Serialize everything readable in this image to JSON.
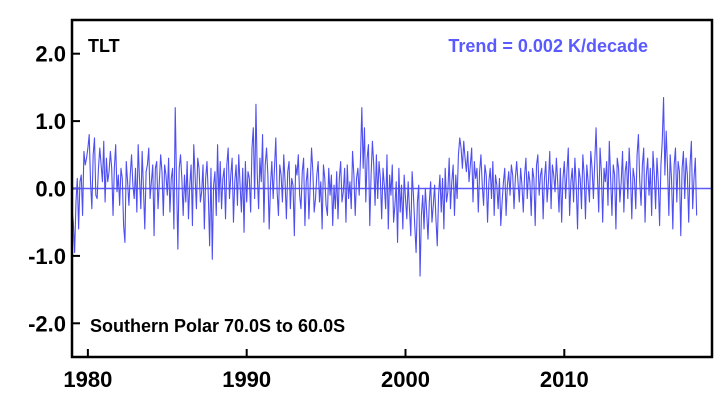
{
  "chart_data": {
    "type": "line",
    "dataset_label": "TLT",
    "trend_text": "Trend =  0.002 K/decade",
    "region_text": "Southern Polar  70.0S to  60.0S",
    "xlim": [
      1979.0,
      2019.3
    ],
    "ylim": [
      -2.5,
      2.5
    ],
    "x_ticks": [
      {
        "value": 1980,
        "label": "1980"
      },
      {
        "value": 1990,
        "label": "1990"
      },
      {
        "value": 2000,
        "label": "2000"
      },
      {
        "value": 2010,
        "label": "2010"
      }
    ],
    "y_ticks": [
      {
        "value": 2.0,
        "label": "2.0"
      },
      {
        "value": 1.0,
        "label": "1.0"
      },
      {
        "value": 0.0,
        "label": "0.0"
      },
      {
        "value": -1.0,
        "label": "-1.0"
      },
      {
        "value": -2.0,
        "label": "-2.0"
      }
    ],
    "series_color": "#4f4ff0",
    "trend_color": "#5a5aff",
    "zero_line": true,
    "grid": false,
    "start_year": 1979.0,
    "step": 0.0833333,
    "series": [
      {
        "values": [
          -0.3,
          -0.5,
          -0.95,
          -0.2,
          0.15,
          -0.6,
          0.1,
          0.2,
          -0.4,
          0.55,
          0.35,
          0.45,
          0.6,
          0.8,
          0.1,
          -0.3,
          0.5,
          0.75,
          -0.1,
          -0.15,
          0.3,
          0.6,
          0.35,
          0.1,
          0.7,
          -0.2,
          0.45,
          0.1,
          0.25,
          0.55,
          0.3,
          -0.4,
          0.3,
          0.65,
          -0.05,
          0.2,
          -0.25,
          0.3,
          0.15,
          -0.55,
          -0.8,
          0.4,
          0.1,
          -0.25,
          0.2,
          0.5,
          0.05,
          -0.15,
          0.3,
          -0.35,
          0.65,
          0.15,
          -0.3,
          0.55,
          0.0,
          -0.6,
          0.25,
          0.35,
          0.6,
          -0.15,
          0.1,
          0.35,
          -0.7,
          0.3,
          0.4,
          -0.3,
          0.1,
          0.5,
          0.25,
          -0.4,
          0.35,
          0.2,
          -0.1,
          0.45,
          -0.35,
          0.15,
          0.3,
          -0.6,
          1.2,
          0.1,
          -0.9,
          0.3,
          0.5,
          0.15,
          -0.4,
          0.2,
          -0.2,
          0.4,
          -0.45,
          0.05,
          0.35,
          -0.55,
          0.65,
          0.2,
          -0.3,
          0.45,
          0.3,
          -0.2,
          -0.05,
          0.35,
          -0.6,
          0.15,
          0.4,
          -0.1,
          -0.85,
          0.3,
          -1.05,
          0.05,
          0.25,
          -0.4,
          0.65,
          -0.2,
          0.4,
          -0.3,
          0.15,
          0.3,
          -0.45,
          0.35,
          0.6,
          -0.15,
          0.2,
          0.45,
          -0.5,
          0.1,
          0.35,
          -0.25,
          0.5,
          0.05,
          -0.35,
          0.3,
          -0.65,
          0.4,
          -0.2,
          0.25,
          0.15,
          -0.35,
          0.6,
          0.9,
          -0.15,
          1.25,
          0.2,
          -0.3,
          0.45,
          0.1,
          0.8,
          -0.5,
          0.35,
          0.6,
          0.2,
          -0.6,
          0.05,
          0.4,
          -0.15,
          0.3,
          0.75,
          -0.05,
          -0.4,
          0.35,
          0.2,
          -0.2,
          0.5,
          0.1,
          -0.45,
          0.25,
          0.4,
          -0.3,
          0.15,
          0.05,
          -0.7,
          0.35,
          0.2,
          0.5,
          -0.1,
          -0.3,
          0.25,
          0.45,
          -0.55,
          0.1,
          0.3,
          -0.45,
          0.05,
          0.6,
          0.25,
          -0.35,
          -0.15,
          0.2,
          0.4,
          -0.2,
          0.1,
          -0.6,
          0.35,
          0.15,
          -0.25,
          -0.4,
          0.3,
          -0.1,
          0.2,
          -0.55,
          0.05,
          -0.3,
          0.25,
          -0.45,
          0.15,
          0.4,
          -0.2,
          -0.05,
          0.3,
          -0.5,
          0.35,
          -0.15,
          0.1,
          -0.3,
          0.55,
          0.2,
          -0.4,
          0.15,
          0.3,
          -0.1,
          0.45,
          1.2,
          0.3,
          0.9,
          -0.2,
          0.45,
          0.65,
          -0.55,
          0.2,
          0.7,
          0.35,
          -0.25,
          0.5,
          -0.15,
          0.4,
          0.15,
          -0.45,
          0.3,
          0.05,
          -0.3,
          0.5,
          -0.6,
          0.2,
          -0.1,
          0.35,
          -0.5,
          -0.25,
          0.1,
          -0.8,
          0.3,
          -0.35,
          0.05,
          -0.6,
          0.2,
          -0.15,
          -0.45,
          0.1,
          -0.3,
          -0.7,
          0.25,
          -0.1,
          -0.55,
          -0.95,
          -0.2,
          0.05,
          -1.3,
          -0.4,
          -0.1,
          -0.6,
          0.0,
          -0.35,
          -0.75,
          -0.2,
          0.1,
          -0.5,
          -0.25,
          0.05,
          -0.45,
          -0.85,
          -0.1,
          0.2,
          -0.35,
          0.15,
          -0.6,
          0.3,
          -0.2,
          -0.05,
          0.45,
          -0.3,
          0.1,
          0.35,
          -0.4,
          0.2,
          -0.15,
          0.5,
          0.75,
          0.6,
          0.3,
          0.7,
          0.45,
          0.25,
          0.55,
          0.1,
          0.35,
          0.6,
          -0.2,
          0.4,
          0.15,
          0.3,
          -0.35,
          0.25,
          0.5,
          0.05,
          -0.25,
          0.35,
          0.2,
          -0.5,
          0.1,
          0.3,
          -0.15,
          0.4,
          -0.4,
          0.2,
          0.05,
          -0.3,
          0.15,
          -0.55,
          -0.2,
          0.1,
          0.3,
          -0.4,
          0.05,
          0.25,
          -0.1,
          0.35,
          0.2,
          -0.3,
          0.15,
          0.4,
          0.1,
          -0.2,
          0.3,
          0.05,
          -0.35,
          0.2,
          0.45,
          -0.15,
          0.25,
          0.1,
          -0.4,
          0.3,
          0.15,
          -0.55,
          0.35,
          0.5,
          -0.1,
          0.2,
          0.3,
          -0.45,
          0.15,
          0.4,
          -0.2,
          0.1,
          0.55,
          -0.3,
          0.35,
          0.2,
          -0.05,
          0.45,
          0.1,
          -0.35,
          0.3,
          -0.5,
          0.15,
          0.4,
          -0.15,
          0.25,
          0.6,
          -0.4,
          0.1,
          0.3,
          -0.2,
          0.45,
          0.05,
          -0.6,
          0.3,
          0.15,
          -0.3,
          0.5,
          0.2,
          -0.45,
          0.35,
          0.1,
          -0.2,
          0.55,
          0.3,
          -0.15,
          0.4,
          0.9,
          0.2,
          -0.35,
          0.6,
          0.25,
          -0.5,
          0.3,
          0.1,
          0.4,
          -0.25,
          0.7,
          0.15,
          -0.4,
          0.35,
          0.2,
          -0.6,
          0.45,
          0.3,
          -0.2,
          0.1,
          0.55,
          -0.35,
          0.25,
          0.4,
          -0.15,
          0.6,
          0.2,
          -0.45,
          0.3,
          0.15,
          -0.3,
          0.5,
          0.8,
          0.1,
          -0.25,
          0.35,
          0.6,
          -0.5,
          0.2,
          0.45,
          -0.1,
          0.3,
          -0.4,
          0.55,
          0.2,
          -0.3,
          0.45,
          0.1,
          -0.55,
          0.35,
          0.7,
          1.35,
          0.2,
          0.85,
          0.3,
          -0.4,
          0.5,
          0.15,
          -0.6,
          0.35,
          0.6,
          -0.2,
          0.4,
          0.25,
          -0.7,
          0.3,
          0.55,
          -0.15,
          0.45,
          0.2,
          -0.5,
          0.35,
          0.7,
          -0.3,
          0.15,
          0.45,
          -0.4
        ]
      }
    ]
  }
}
